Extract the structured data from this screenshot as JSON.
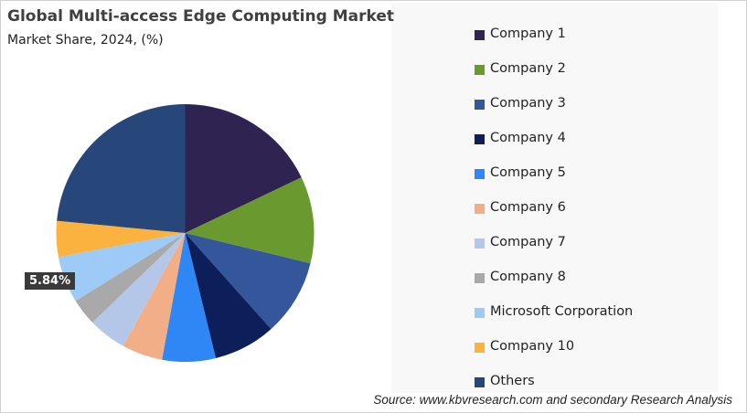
{
  "chart_data": {
    "type": "pie",
    "title": "Global Multi-access Edge Computing Market",
    "subtitle": "Market Share, 2024, (%)",
    "start_angle": "top, clockwise",
    "legend_position": "right",
    "slices": [
      {
        "label": "Company 1",
        "value": 17.9,
        "color": "#2e2351"
      },
      {
        "label": "Company 2",
        "value": 10.9,
        "color": "#6a9a2f"
      },
      {
        "label": "Company 3",
        "value": 9.6,
        "color": "#34569b"
      },
      {
        "label": "Company 4",
        "value": 7.8,
        "color": "#0d1f5b"
      },
      {
        "label": "Company 5",
        "value": 6.7,
        "color": "#2f86f5"
      },
      {
        "label": "Company 6",
        "value": 5.1,
        "color": "#f2ae86"
      },
      {
        "label": "Company 7",
        "value": 4.8,
        "color": "#b5c7e8"
      },
      {
        "label": "Company 8",
        "value": 3.4,
        "color": "#a9a9a9"
      },
      {
        "label": "Microsoft Corporation",
        "value": 5.84,
        "color": "#9dcaf7",
        "data_label": "5.84%"
      },
      {
        "label": "Company 10",
        "value": 4.5,
        "color": "#fbb23f"
      },
      {
        "label": "Others",
        "value": 23.5,
        "color": "#27477a"
      }
    ]
  },
  "source": "Source: www.kbvresearch.com and secondary Research Analysis"
}
